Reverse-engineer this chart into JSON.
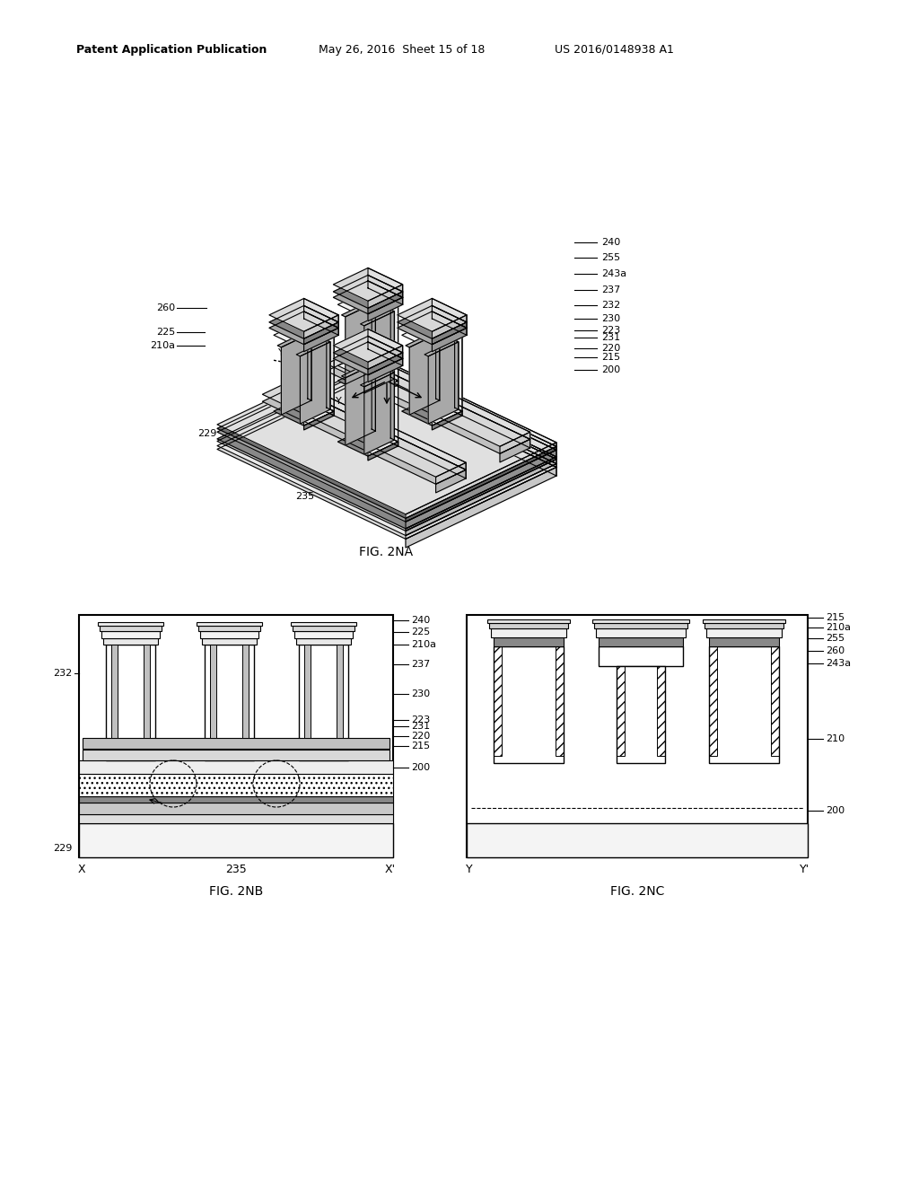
{
  "title_left": "Patent Application Publication",
  "title_mid": "May 26, 2016  Sheet 15 of 18",
  "title_right": "US 2016/0148938 A1",
  "fig_na_label": "FIG. 2NA",
  "fig_nb_label": "FIG. 2NB",
  "fig_nc_label": "FIG. 2NC",
  "bg_color": "#ffffff",
  "line_color": "#000000"
}
